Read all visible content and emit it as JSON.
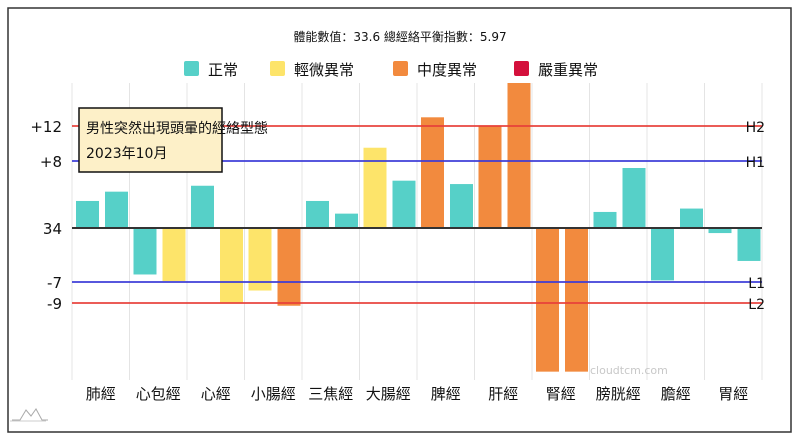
{
  "chart_data": {
    "type": "bar",
    "title": "體能數值：33.6 總經絡平衡指數：5.97",
    "annotation": [
      "男性突然出現頭暈的經絡型態",
      "2023年10月"
    ],
    "watermark": "cloudtcm.com",
    "legend": [
      {
        "label": "正常",
        "color": "#56d0c8"
      },
      {
        "label": "輕微異常",
        "color": "#fde46a"
      },
      {
        "label": "中度異常",
        "color": "#f28a3e"
      },
      {
        "label": "嚴重異常",
        "color": "#d4103c"
      }
    ],
    "legend_position": "top",
    "baseline": 34,
    "ylim": [
      -17,
      17.3
    ],
    "yticks": [
      {
        "value": 12,
        "label": "+12"
      },
      {
        "value": 8,
        "label": "+8"
      },
      {
        "value": 0,
        "label": "34"
      },
      {
        "value": -7,
        "label": "-7"
      },
      {
        "value": -9,
        "label": "-9"
      }
    ],
    "reference_lines": [
      {
        "value": 12,
        "label": "H2",
        "color": "#e8403a"
      },
      {
        "value": 8,
        "label": "H1",
        "color": "#3a3ad8"
      },
      {
        "value": -7,
        "label": "L1",
        "color": "#3a3ad8"
      },
      {
        "value": -9,
        "label": "L2",
        "color": "#e8403a"
      }
    ],
    "categories": [
      "肺經",
      "心包經",
      "心經",
      "小腸經",
      "三焦經",
      "大腸經",
      "脾經",
      "肝經",
      "腎經",
      "膀胱經",
      "膽經",
      "胃經"
    ],
    "series": [
      {
        "values": [
          3.2,
          -5.5,
          5.0,
          -7.4,
          3.2,
          9.5,
          13.1,
          12.1,
          -17,
          1.9,
          -6.2,
          -0.6
        ],
        "levels": [
          0,
          0,
          0,
          1,
          0,
          1,
          2,
          2,
          2,
          0,
          0,
          0
        ]
      },
      {
        "values": [
          4.3,
          -6.3,
          -8.9,
          -9.2,
          1.7,
          5.6,
          5.2,
          17.3,
          -17,
          7.1,
          2.3,
          -3.9
        ],
        "levels": [
          0,
          1,
          1,
          2,
          0,
          0,
          0,
          2,
          2,
          0,
          0,
          0
        ]
      }
    ],
    "grid": true
  }
}
